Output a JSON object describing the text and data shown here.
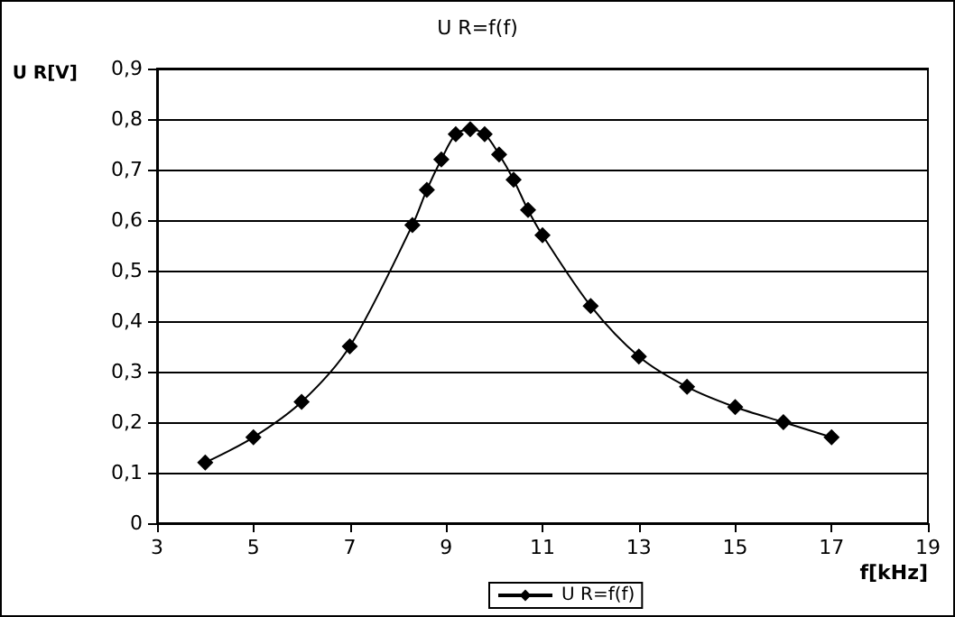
{
  "chart_data": {
    "type": "line",
    "title": "U R=f(f)",
    "xlabel": "f[kHz]",
    "ylabel": "U R[V]",
    "series": [
      {
        "name": "U R=f(f)",
        "color": "#000000",
        "x": [
          4,
          5,
          6,
          7,
          8.3,
          8.6,
          8.9,
          9.2,
          9.5,
          9.8,
          10.1,
          10.4,
          10.7,
          11,
          12,
          13,
          14,
          15,
          16,
          17
        ],
        "values": [
          0.12,
          0.17,
          0.24,
          0.35,
          0.59,
          0.66,
          0.72,
          0.77,
          0.78,
          0.77,
          0.73,
          0.68,
          0.62,
          0.57,
          0.43,
          0.33,
          0.27,
          0.23,
          0.2,
          0.17
        ]
      }
    ],
    "xlim": [
      3,
      19
    ],
    "xticks": [
      3,
      5,
      7,
      9,
      11,
      13,
      15,
      17,
      19
    ],
    "ylim": [
      0,
      0.9
    ],
    "yticks": [
      {
        "value": 0,
        "label": "0"
      },
      {
        "value": 0.1,
        "label": "0,1"
      },
      {
        "value": 0.2,
        "label": "0,2"
      },
      {
        "value": 0.3,
        "label": "0,3"
      },
      {
        "value": 0.4,
        "label": "0,4"
      },
      {
        "value": 0.5,
        "label": "0,5"
      },
      {
        "value": 0.6,
        "label": "0,6"
      },
      {
        "value": 0.7,
        "label": "0,7"
      },
      {
        "value": 0.8,
        "label": "0,8"
      },
      {
        "value": 0.9,
        "label": "0,9"
      }
    ],
    "grid": "y",
    "legend": "bottom",
    "marker": "diamond",
    "line_style": "solid"
  }
}
